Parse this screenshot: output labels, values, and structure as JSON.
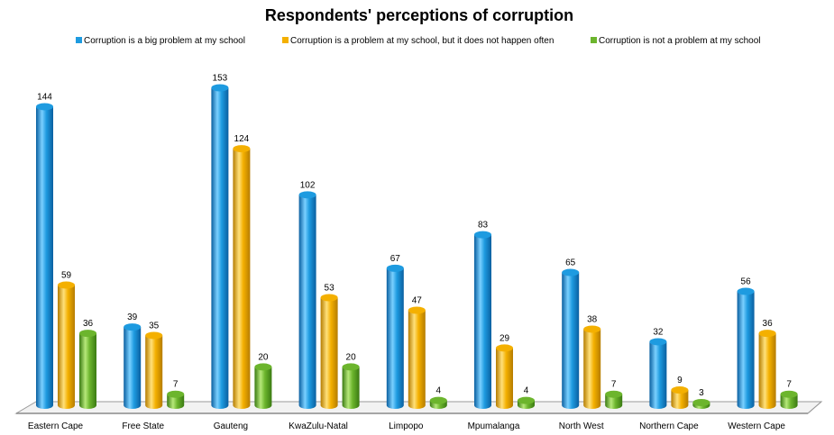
{
  "chart_data": {
    "type": "bar",
    "title": "Respondents' perceptions of corruption",
    "categories": [
      "Eastern Cape",
      "Free State",
      "Gauteng",
      "KwaZulu-Natal",
      "Limpopo",
      "Mpumalanga",
      "North West",
      "Northern Cape",
      "Western Cape"
    ],
    "series": [
      {
        "name": "Corruption is a big problem at my school",
        "values": [
          144,
          39,
          153,
          102,
          67,
          83,
          65,
          32,
          56
        ]
      },
      {
        "name": "Corruption is a problem at my school, but it does not happen often",
        "values": [
          59,
          35,
          124,
          53,
          47,
          29,
          38,
          9,
          36
        ]
      },
      {
        "name": "Corruption is not a problem at my school",
        "values": [
          36,
          7,
          20,
          20,
          4,
          4,
          7,
          3,
          7
        ]
      }
    ],
    "ylim": [
      0,
      160
    ],
    "grid": false,
    "legend_position": "top",
    "data_labels": true,
    "colors": [
      "#1e9be0",
      "#f4b000",
      "#6cb52d"
    ],
    "colors_dark": [
      "#0a5fa0",
      "#b57c00",
      "#3a7a12"
    ],
    "colors_light": [
      "#7ad0ff",
      "#ffe07a",
      "#b6e87a"
    ]
  }
}
